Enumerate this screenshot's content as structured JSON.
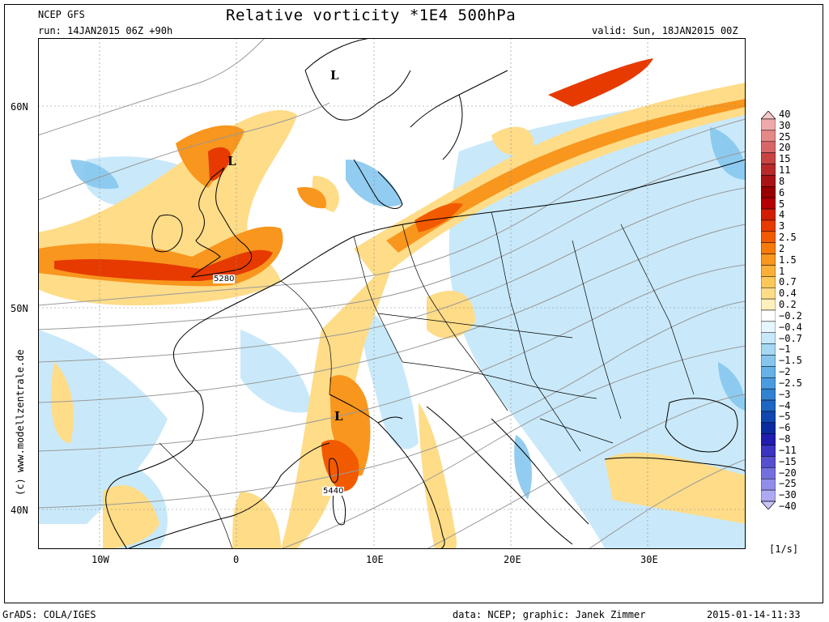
{
  "header": {
    "model": "NCEP GFS",
    "run": "run: 14JAN2015 06Z +90h",
    "title": "Relative vorticity *1E4 500hPa",
    "valid": "valid: Sun, 18JAN2015 00Z"
  },
  "axes": {
    "lat_labels": [
      "60N",
      "50N",
      "40N"
    ],
    "lon_labels": [
      "10W",
      "0",
      "10E",
      "20E",
      "30E"
    ]
  },
  "colorbar": {
    "unit": "[1/s]",
    "labels": [
      "40",
      "30",
      "25",
      "20",
      "15",
      "11",
      "8",
      "6",
      "5",
      "4",
      "3",
      "2.5",
      "2",
      "1.5",
      "1",
      "0.7",
      "0.4",
      "0.2",
      "−0.2",
      "−0.4",
      "−0.7",
      "−1",
      "−1.5",
      "−2",
      "−2.5",
      "−3",
      "−4",
      "−5",
      "−6",
      "−8",
      "−11",
      "−15",
      "−20",
      "−25",
      "−30",
      "−40"
    ],
    "colors": [
      "#f6c6c6",
      "#eeaaaa",
      "#e48888",
      "#d86666",
      "#c84444",
      "#b82a2a",
      "#a81414",
      "#980000",
      "#b40000",
      "#d21e00",
      "#e63a00",
      "#f25a00",
      "#f67a0a",
      "#f8961e",
      "#fab038",
      "#fcc85a",
      "#fedc88",
      "#fff0bc",
      "#ffffff",
      "#e6f6fe",
      "#c6e8fa",
      "#a6d8f4",
      "#86c6ee",
      "#66b2e6",
      "#4a9cde",
      "#3282d2",
      "#1e66c4",
      "#1046b0",
      "#0a2ca0",
      "#201cb0",
      "#3a34c0",
      "#5650d0",
      "#7270de",
      "#908eea",
      "#aeaaf2",
      "#c8c6f8"
    ]
  },
  "markers": {
    "low_symbol": "L",
    "lows": [
      "L",
      "L",
      "L"
    ]
  },
  "contours": {
    "label_5280": "5280",
    "label_5440": "5440"
  },
  "footer": {
    "grads": "GrADS: COLA/IGES",
    "credit": "data: NCEP; graphic: Janek Zimmer",
    "timestamp": "2015-01-14-11:33"
  },
  "side_text": "(c) www.modellzentrale.de"
}
